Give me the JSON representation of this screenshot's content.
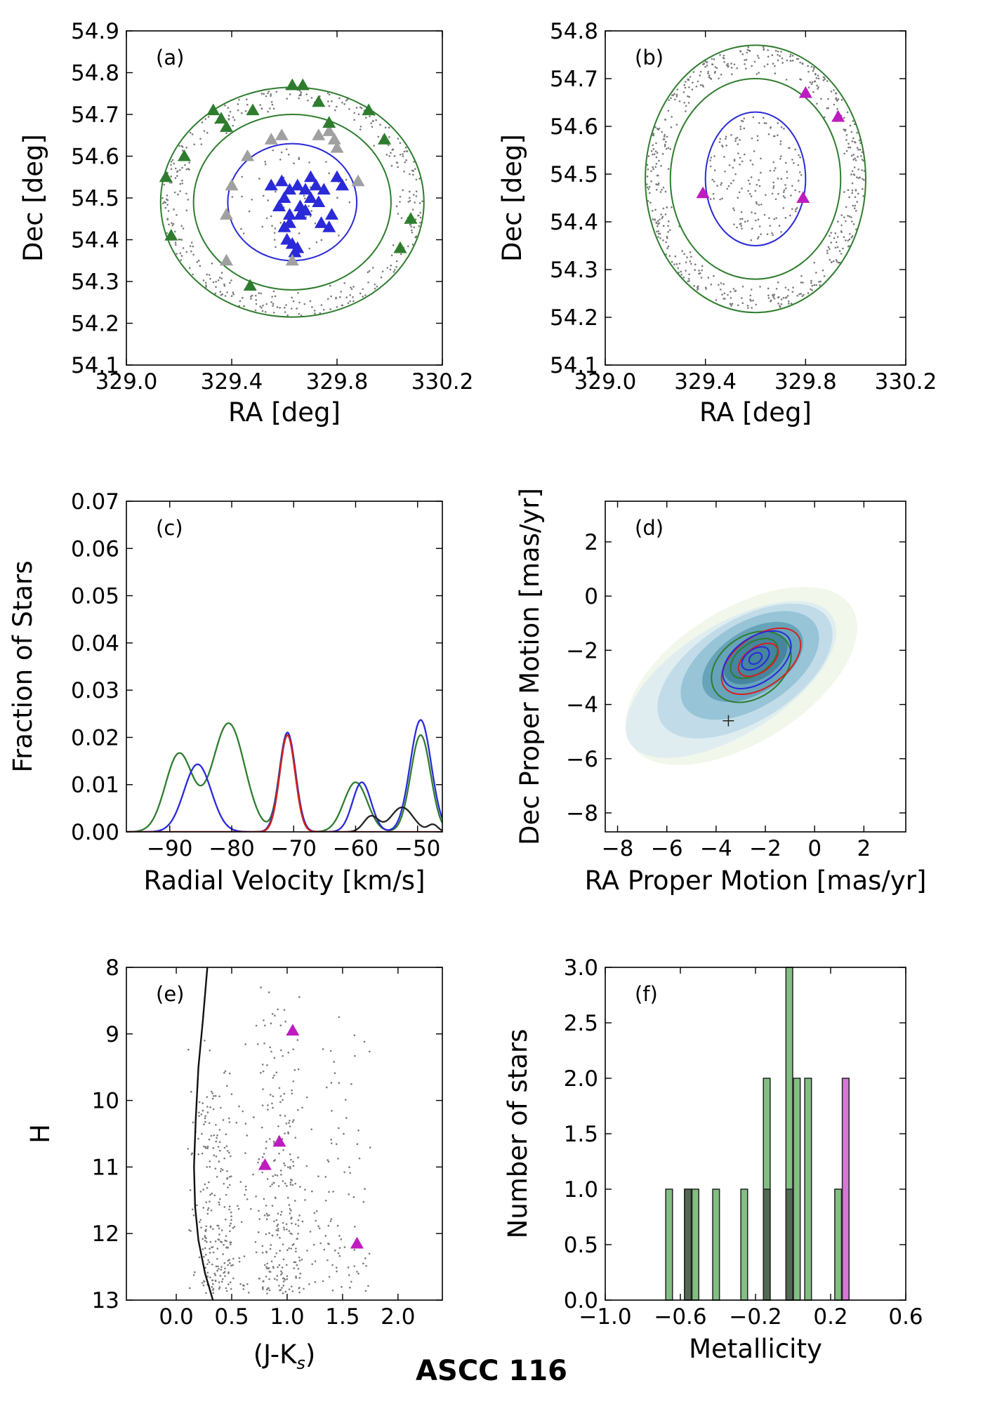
{
  "figure_title": "ASCC 116",
  "colors": {
    "member": "#2a2ad8",
    "field": "#2e7d2e",
    "nonmember": "#a0a0a0",
    "target": "#bf1cbf",
    "dots": "#7a7a7a",
    "red": "#d62020",
    "black": "#222222"
  },
  "chart_data": [
    {
      "id": "a",
      "type": "scatter",
      "panel_label": "(a)",
      "xlabel": "RA [deg]",
      "ylabel": "Dec [deg]",
      "xlim": [
        329.0,
        330.2
      ],
      "ylim": [
        54.1,
        54.9
      ],
      "xticks": [
        "329.0",
        "329.4",
        "329.8",
        "330.2"
      ],
      "yticks": [
        "54.1",
        "54.2",
        "54.3",
        "54.4",
        "54.5",
        "54.6",
        "54.7",
        "54.8",
        "54.9"
      ],
      "circles": [
        {
          "name": "inner-radius",
          "center": [
            329.63,
            54.49
          ],
          "rx": 0.245,
          "ry": 0.14,
          "color": "member"
        },
        {
          "name": "annulus-inner",
          "center": [
            329.63,
            54.49
          ],
          "rx": 0.375,
          "ry": 0.21,
          "color": "field"
        },
        {
          "name": "annulus-outer",
          "center": [
            329.63,
            54.49
          ],
          "rx": 0.5,
          "ry": 0.275,
          "color": "field"
        }
      ],
      "series": [
        {
          "name": "members",
          "color": "member",
          "points": [
            [
              329.55,
              54.53
            ],
            [
              329.59,
              54.54
            ],
            [
              329.62,
              54.52
            ],
            [
              329.65,
              54.53
            ],
            [
              329.68,
              54.52
            ],
            [
              329.7,
              54.55
            ],
            [
              329.72,
              54.53
            ],
            [
              329.75,
              54.52
            ],
            [
              329.8,
              54.55
            ],
            [
              329.82,
              54.53
            ],
            [
              329.6,
              54.5
            ],
            [
              329.66,
              54.48
            ],
            [
              329.7,
              54.5
            ],
            [
              329.73,
              54.49
            ],
            [
              329.58,
              54.48
            ],
            [
              329.62,
              54.46
            ],
            [
              329.66,
              54.46
            ],
            [
              329.68,
              54.47
            ],
            [
              329.74,
              54.44
            ],
            [
              329.77,
              54.43
            ],
            [
              329.78,
              54.46
            ],
            [
              329.6,
              54.43
            ],
            [
              329.63,
              54.39
            ],
            [
              329.61,
              54.4
            ],
            [
              329.64,
              54.37
            ],
            [
              329.65,
              54.38
            ],
            [
              329.62,
              54.44
            ]
          ]
        },
        {
          "name": "nonmembers",
          "color": "nonmember",
          "points": [
            [
              329.4,
              54.53
            ],
            [
              329.38,
              54.46
            ],
            [
              329.46,
              54.6
            ],
            [
              329.55,
              54.64
            ],
            [
              329.59,
              54.65
            ],
            [
              329.73,
              54.65
            ],
            [
              329.77,
              54.66
            ],
            [
              329.79,
              54.64
            ],
            [
              329.8,
              54.62
            ],
            [
              329.88,
              54.54
            ],
            [
              329.38,
              54.35
            ],
            [
              329.63,
              54.35
            ]
          ]
        },
        {
          "name": "field",
          "color": "field",
          "points": [
            [
              329.15,
              54.55
            ],
            [
              329.17,
              54.41
            ],
            [
              329.22,
              54.6
            ],
            [
              329.33,
              54.71
            ],
            [
              329.36,
              54.69
            ],
            [
              329.38,
              54.67
            ],
            [
              329.48,
              54.71
            ],
            [
              329.63,
              54.77
            ],
            [
              329.67,
              54.77
            ],
            [
              329.73,
              54.73
            ],
            [
              329.77,
              54.68
            ],
            [
              329.92,
              54.71
            ],
            [
              329.98,
              54.64
            ],
            [
              330.08,
              54.45
            ],
            [
              330.04,
              54.38
            ],
            [
              329.47,
              54.29
            ]
          ]
        }
      ]
    },
    {
      "id": "b",
      "type": "scatter",
      "panel_label": "(b)",
      "xlabel": "RA [deg]",
      "ylabel": "Dec [deg]",
      "xlim": [
        329.0,
        330.2
      ],
      "ylim": [
        54.1,
        54.8
      ],
      "xticks": [
        "329.0",
        "329.4",
        "329.8",
        "330.2"
      ],
      "yticks": [
        "54.1",
        "54.2",
        "54.3",
        "54.4",
        "54.5",
        "54.6",
        "54.7",
        "54.8"
      ],
      "circles": [
        {
          "name": "inner-radius",
          "center": [
            329.6,
            54.49
          ],
          "rx": 0.2,
          "ry": 0.14,
          "color": "member"
        },
        {
          "name": "annulus-inner",
          "center": [
            329.6,
            54.49
          ],
          "rx": 0.34,
          "ry": 0.21,
          "color": "field"
        },
        {
          "name": "annulus-outer",
          "center": [
            329.6,
            54.49
          ],
          "rx": 0.44,
          "ry": 0.28,
          "color": "field"
        }
      ],
      "series": [
        {
          "name": "targets",
          "color": "target",
          "points": [
            [
              329.8,
              54.67
            ],
            [
              329.93,
              54.62
            ],
            [
              329.39,
              54.46
            ],
            [
              329.79,
              54.45
            ]
          ]
        }
      ]
    },
    {
      "id": "c",
      "type": "line",
      "panel_label": "(c)",
      "xlabel": "Radial Velocity [km/s]",
      "ylabel": "Fraction of Stars",
      "xlim": [
        -97,
        -46
      ],
      "ylim": [
        0.0,
        0.07
      ],
      "xticks": [
        "−90",
        "−80",
        "−70",
        "−60",
        "−50"
      ],
      "xtick_values": [
        -90,
        -80,
        -70,
        -60,
        -50
      ],
      "yticks": [
        "0.00",
        "0.01",
        "0.02",
        "0.03",
        "0.04",
        "0.05",
        "0.06",
        "0.07"
      ],
      "series": [
        {
          "name": "field",
          "color": "field",
          "peaks": [
            [
              -88.5,
              0.0165,
              2.2
            ],
            [
              -80.5,
              0.023,
              2.6
            ],
            [
              -71,
              0.021,
              1.3
            ],
            [
              -60,
              0.0105,
              1.9
            ],
            [
              -49.5,
              0.0205,
              1.6
            ]
          ]
        },
        {
          "name": "members",
          "color": "member",
          "peaks": [
            [
              -85.5,
              0.0143,
              2.2
            ],
            [
              -71,
              0.021,
              1.3
            ],
            [
              -59,
              0.0105,
              1.5
            ],
            [
              -49.5,
              0.0237,
              1.7
            ]
          ]
        },
        {
          "name": "targets",
          "color": "black",
          "peaks": [
            [
              -71,
              0.0205,
              1.25
            ],
            [
              -57.5,
              0.0033,
              1.2
            ],
            [
              -52.5,
              0.0052,
              1.8
            ],
            [
              -47.5,
              0.0015,
              0.8
            ]
          ]
        },
        {
          "name": "fit",
          "color": "red",
          "peaks": [
            [
              -71,
              0.0205,
              1.25
            ]
          ]
        }
      ]
    },
    {
      "id": "d",
      "type": "heatmap",
      "panel_label": "(d)",
      "xlabel": "RA Proper Motion [mas/yr]",
      "ylabel": "Dec Proper Motion [mas/yr]",
      "xlim": [
        -8.5,
        3.7
      ],
      "ylim": [
        -8.7,
        3.5
      ],
      "xticks": [
        "−8",
        "−6",
        "−4",
        "−2",
        "0",
        "2"
      ],
      "xtick_values": [
        -8,
        -6,
        -4,
        -2,
        0,
        2
      ],
      "yticks": [
        "−8",
        "−6",
        "−4",
        "−2",
        "0",
        "2"
      ],
      "ytick_values": [
        -8,
        -6,
        -4,
        -2,
        0,
        2
      ],
      "center": [
        -2.4,
        -2.3
      ],
      "target_marker": [
        -3.5,
        -4.6
      ]
    },
    {
      "id": "e",
      "type": "scatter",
      "panel_label": "(e)",
      "xlabel": "(J-K",
      "xlabel_sub": "s",
      "xlabel_end": ")",
      "ylabel": "H",
      "xlim": [
        -0.45,
        2.4
      ],
      "ylim": [
        13.0,
        8.0
      ],
      "xticks": [
        "0.0",
        "0.5",
        "1.0",
        "1.5",
        "2.0"
      ],
      "xtick_values": [
        0.0,
        0.5,
        1.0,
        1.5,
        2.0
      ],
      "yticks": [
        "8",
        "9",
        "10",
        "11",
        "12",
        "13"
      ],
      "ytick_values": [
        8,
        9,
        10,
        11,
        12,
        13
      ],
      "isochrone": [
        [
          0.28,
          8.0
        ],
        [
          0.24,
          8.8
        ],
        [
          0.2,
          9.5
        ],
        [
          0.175,
          10.3
        ],
        [
          0.16,
          11.0
        ],
        [
          0.17,
          11.6
        ],
        [
          0.2,
          12.1
        ],
        [
          0.26,
          12.6
        ],
        [
          0.33,
          13.0
        ]
      ],
      "series": [
        {
          "name": "targets",
          "color": "target",
          "points": [
            [
              1.05,
              8.95
            ],
            [
              0.93,
              10.62
            ],
            [
              0.8,
              10.97
            ],
            [
              1.63,
              12.15
            ]
          ]
        }
      ]
    },
    {
      "id": "f",
      "type": "bar",
      "panel_label": "(f)",
      "xlabel": "Metallicity",
      "ylabel": "Number of stars",
      "xlim": [
        -1.0,
        0.6
      ],
      "ylim": [
        0.0,
        3.0
      ],
      "xticks": [
        "−1.0",
        "−0.6",
        "−0.2",
        "0.2",
        "0.6"
      ],
      "xtick_values": [
        -1.0,
        -0.6,
        -0.2,
        0.2,
        0.6
      ],
      "yticks": [
        "0.0",
        "0.5",
        "1.0",
        "1.5",
        "2.0",
        "2.5",
        "3.0"
      ],
      "ytick_values": [
        0.0,
        0.5,
        1.0,
        1.5,
        2.0,
        2.5,
        3.0
      ],
      "bin_width": 0.036,
      "series": [
        {
          "name": "field",
          "color": "field",
          "bins": [
            [
              -0.66,
              1
            ],
            [
              -0.56,
              1
            ],
            [
              -0.52,
              1
            ],
            [
              -0.41,
              1
            ],
            [
              -0.26,
              1
            ],
            [
              -0.14,
              2
            ],
            [
              -0.02,
              3
            ],
            [
              0.02,
              2
            ],
            [
              0.08,
              2
            ],
            [
              0.24,
              1
            ]
          ]
        },
        {
          "name": "members",
          "color": "black",
          "bins": [
            [
              -0.56,
              1
            ],
            [
              -0.14,
              1
            ],
            [
              -0.02,
              1
            ]
          ]
        },
        {
          "name": "targets",
          "color": "target",
          "bins": [
            [
              0.28,
              2
            ]
          ]
        }
      ]
    }
  ]
}
